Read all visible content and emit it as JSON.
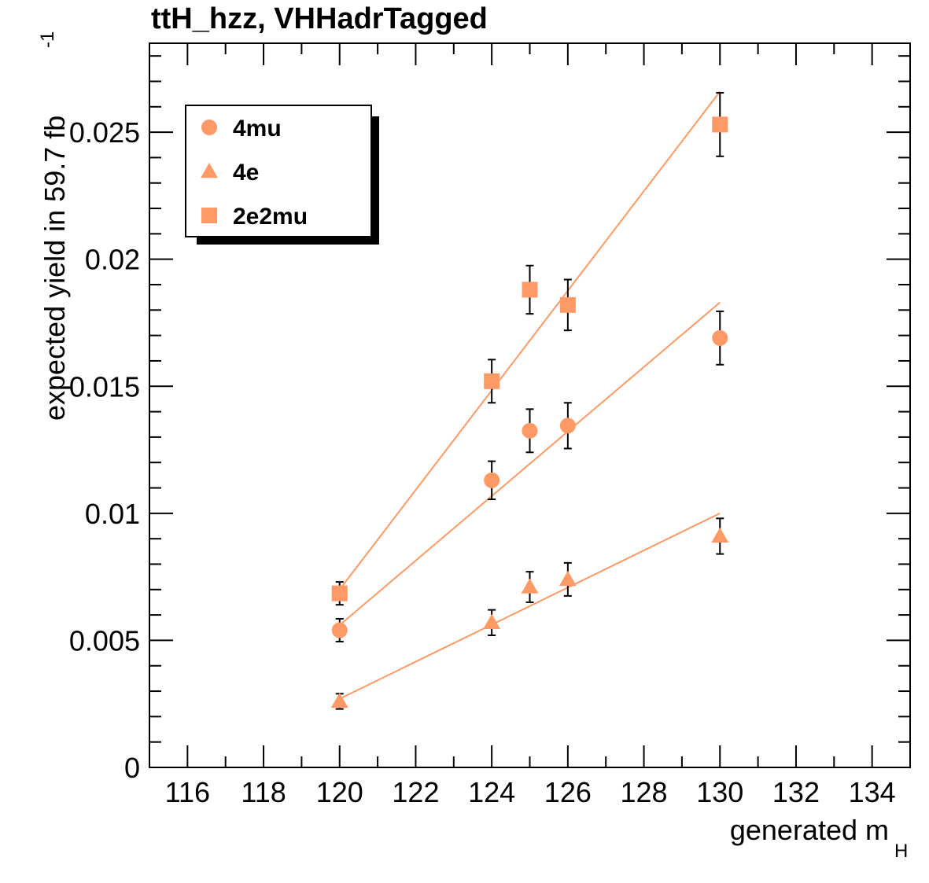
{
  "chart_data": {
    "type": "scatter",
    "title": "ttH_hzz, VHHadrTagged",
    "xlabel": "generated m",
    "xlabel_sub": "H",
    "ylabel": "expected yield in 59.7 fb",
    "ylabel_sup": "-1",
    "xlim": [
      115,
      135
    ],
    "ylim": [
      0,
      0.0285
    ],
    "x_ticks": [
      116,
      118,
      120,
      122,
      124,
      126,
      128,
      130,
      132,
      134
    ],
    "y_ticks": [
      0,
      0.005,
      0.01,
      0.015,
      0.02,
      0.025
    ],
    "y_tick_labels": [
      "0",
      "0.005",
      "0.01",
      "0.015",
      "0.02",
      "0.025"
    ],
    "grid": false,
    "legend_position": "top-left",
    "color": "#ff9966",
    "series": [
      {
        "name": "4mu",
        "marker": "circle",
        "x": [
          120,
          124,
          125,
          126,
          130
        ],
        "y": [
          0.0054,
          0.0113,
          0.01325,
          0.01345,
          0.0169
        ],
        "yerr": [
          0.00045,
          0.00075,
          0.00085,
          0.0009,
          0.00105
        ],
        "fit": {
          "x": [
            120,
            130
          ],
          "y": [
            0.0056,
            0.0183
          ]
        }
      },
      {
        "name": "4e",
        "marker": "triangle",
        "x": [
          120,
          124,
          125,
          126,
          130
        ],
        "y": [
          0.0026,
          0.0057,
          0.0071,
          0.0074,
          0.0091
        ],
        "yerr": [
          0.0003,
          0.0005,
          0.0006,
          0.00065,
          0.0007
        ],
        "fit": {
          "x": [
            120,
            130
          ],
          "y": [
            0.0027,
            0.01
          ]
        }
      },
      {
        "name": "2e2mu",
        "marker": "square",
        "x": [
          120,
          124,
          125,
          126,
          130
        ],
        "y": [
          0.00685,
          0.0152,
          0.0188,
          0.0182,
          0.0253
        ],
        "yerr": [
          0.00045,
          0.00085,
          0.00095,
          0.001,
          0.00125
        ],
        "fit": {
          "x": [
            120,
            130
          ],
          "y": [
            0.007,
            0.0266
          ]
        }
      }
    ]
  }
}
